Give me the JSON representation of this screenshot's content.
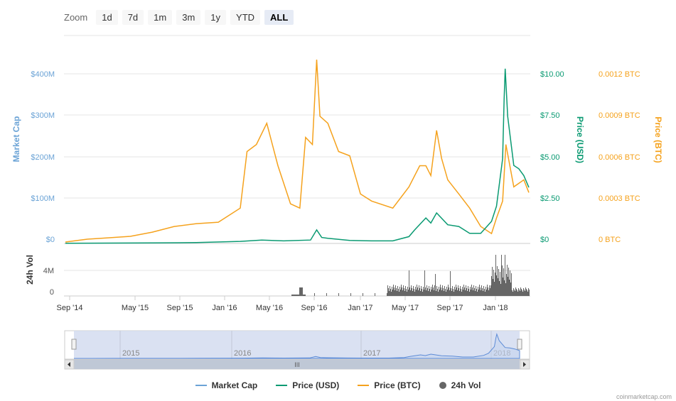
{
  "zoom": {
    "label": "Zoom",
    "buttons": [
      "1d",
      "7d",
      "1m",
      "3m",
      "1y",
      "YTD",
      "ALL"
    ],
    "active": "ALL"
  },
  "colors": {
    "market_cap": "#6ba3d6",
    "price_usd": "#0a9a72",
    "price_btc": "#f5a21d",
    "volume": "#666666",
    "navigator_fill": "#d3dcf0"
  },
  "legend": [
    {
      "label": "Market Cap",
      "kind": "line",
      "color": "#6ba3d6"
    },
    {
      "label": "Price (USD)",
      "kind": "line",
      "color": "#0a9a72"
    },
    {
      "label": "Price (BTC)",
      "kind": "line",
      "color": "#f5a21d"
    },
    {
      "label": "24h Vol",
      "kind": "dot",
      "color": "#666666"
    }
  ],
  "credit": "coinmarketcap.com",
  "chart_data": {
    "type": "line",
    "x_ticks": [
      "Sep '14",
      "May '15",
      "Sep '15",
      "Jan '16",
      "May '16",
      "Sep '16",
      "Jan '17",
      "May '17",
      "Sep '17",
      "Jan '18"
    ],
    "navigator_ticks": [
      "2015",
      "2016",
      "2017",
      "2018"
    ],
    "grid": true,
    "legend_position": "bottom",
    "axes": {
      "market_cap": {
        "label": "Market Cap",
        "ticks": [
          "$0",
          "$100M",
          "$200M",
          "$300M",
          "$400M"
        ],
        "range": [
          0,
          400000000
        ]
      },
      "price_usd": {
        "label": "Price (USD)",
        "ticks": [
          "$0",
          "$2.50",
          "$5.00",
          "$7.50",
          "$10.00"
        ],
        "range": [
          0,
          10
        ]
      },
      "price_btc": {
        "label": "Price (BTC)",
        "ticks": [
          "0 BTC",
          "0.0003 BTC",
          "0.0006 BTC",
          "0.0009 BTC",
          "0.0012 BTC"
        ],
        "range": [
          0,
          0.0012
        ]
      },
      "volume": {
        "label": "24h Vol",
        "ticks": [
          "0",
          "4M"
        ],
        "range": [
          0,
          4000000
        ]
      }
    },
    "series": [
      {
        "name": "Price (USD)",
        "x": [
          "2014-09-01",
          "2015-01-01",
          "2015-05-01",
          "2015-09-01",
          "2016-01-01",
          "2016-03-01",
          "2016-05-01",
          "2016-07-15",
          "2016-08-01",
          "2016-08-15",
          "2016-09-01",
          "2016-11-01",
          "2017-01-01",
          "2017-03-01",
          "2017-04-15",
          "2017-05-01",
          "2017-06-01",
          "2017-06-15",
          "2017-07-01",
          "2017-08-01",
          "2017-09-01",
          "2017-10-01",
          "2017-11-01",
          "2017-12-01",
          "2017-12-15",
          "2018-01-01",
          "2018-01-05",
          "2018-01-08",
          "2018-01-15",
          "2018-02-01",
          "2018-02-15",
          "2018-03-01",
          "2018-03-15"
        ],
        "values": [
          0.01,
          0.02,
          0.03,
          0.05,
          0.12,
          0.2,
          0.15,
          0.2,
          0.8,
          0.35,
          0.3,
          0.18,
          0.15,
          0.15,
          0.4,
          0.8,
          1.5,
          1.2,
          1.8,
          1.1,
          1.0,
          0.6,
          0.6,
          1.3,
          2.2,
          5.0,
          8.5,
          10.3,
          7.5,
          4.6,
          4.4,
          4.0,
          3.3
        ]
      },
      {
        "name": "Price (BTC)",
        "x": [
          "2014-09-01",
          "2014-11-01",
          "2015-01-01",
          "2015-03-01",
          "2015-05-01",
          "2015-07-01",
          "2015-09-01",
          "2015-11-01",
          "2016-01-01",
          "2016-01-20",
          "2016-02-15",
          "2016-03-15",
          "2016-04-15",
          "2016-05-20",
          "2016-06-15",
          "2016-07-01",
          "2016-07-20",
          "2016-08-01",
          "2016-08-10",
          "2016-09-01",
          "2016-10-01",
          "2016-11-01",
          "2016-12-01",
          "2017-01-01",
          "2017-03-01",
          "2017-04-15",
          "2017-05-15",
          "2017-06-01",
          "2017-06-15",
          "2017-07-01",
          "2017-07-15",
          "2017-08-01",
          "2017-09-01",
          "2017-10-01",
          "2017-11-01",
          "2017-12-01",
          "2017-12-15",
          "2018-01-01",
          "2018-01-10",
          "2018-02-01",
          "2018-03-01",
          "2018-03-15"
        ],
        "values": [
          1e-05,
          3e-05,
          4e-05,
          5e-05,
          8e-05,
          0.00012,
          0.00014,
          0.00015,
          0.00025,
          0.00065,
          0.0007,
          0.00085,
          0.00055,
          0.00028,
          0.00025,
          0.00075,
          0.0007,
          0.0013,
          0.0009,
          0.00085,
          0.00065,
          0.00062,
          0.00035,
          0.0003,
          0.00025,
          0.0004,
          0.00055,
          0.00055,
          0.00048,
          0.0008,
          0.0006,
          0.00045,
          0.00035,
          0.00025,
          0.00012,
          7e-05,
          0.00018,
          0.0003,
          0.0007,
          0.0004,
          0.00045,
          0.00036
        ]
      }
    ]
  }
}
